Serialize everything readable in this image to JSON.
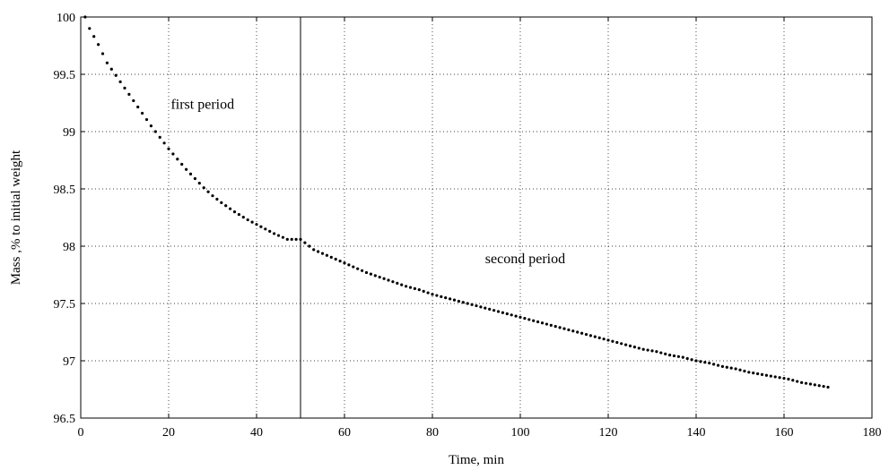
{
  "chart_data": {
    "type": "scatter",
    "xlabel": "Time, min",
    "ylabel": "Mass ,% to initial weight",
    "xlim": [
      0,
      180
    ],
    "ylim": [
      96.5,
      100
    ],
    "xticks": [
      0,
      20,
      40,
      60,
      80,
      100,
      120,
      140,
      160,
      180
    ],
    "yticks": [
      96.5,
      97,
      97.5,
      98,
      98.5,
      99,
      99.5,
      100
    ],
    "xtick_labels": [
      "0",
      "20",
      "40",
      "60",
      "80",
      "100",
      "120",
      "140",
      "160",
      "180"
    ],
    "ytick_labels": [
      "96.5",
      "97",
      "97.5",
      "98",
      "98.5",
      "99",
      "99.5",
      "100"
    ],
    "grid": true,
    "grid_style": "dotted",
    "marker_color": "#000000",
    "vline_x": 50,
    "annotations": [
      {
        "text": "first period",
        "x": 20.5,
        "y": 99.2
      },
      {
        "text": "second period",
        "x": 92,
        "y": 97.85
      }
    ],
    "series": [
      {
        "x": [
          1,
          2,
          3,
          4,
          5,
          6,
          8,
          10,
          12,
          14,
          16,
          18,
          20,
          22,
          24,
          26,
          28,
          30,
          32,
          35,
          38,
          41,
          44,
          47,
          50,
          53,
          56,
          59,
          62,
          65,
          68,
          71,
          74,
          77,
          80,
          83,
          86,
          89,
          92,
          95,
          98,
          101,
          104,
          107,
          110,
          113,
          116,
          119,
          122,
          125,
          128,
          131,
          134,
          137,
          140,
          143,
          146,
          149,
          152,
          155,
          158,
          161,
          164,
          167,
          170
        ],
        "y": [
          100.0,
          99.9,
          99.83,
          99.76,
          99.68,
          99.6,
          99.49,
          99.38,
          99.27,
          99.16,
          99.05,
          98.95,
          98.85,
          98.76,
          98.67,
          98.59,
          98.51,
          98.44,
          98.38,
          98.3,
          98.23,
          98.17,
          98.11,
          98.06,
          98.06,
          97.97,
          97.92,
          97.87,
          97.82,
          97.77,
          97.73,
          97.69,
          97.65,
          97.62,
          97.58,
          97.55,
          97.52,
          97.49,
          97.46,
          97.43,
          97.4,
          97.37,
          97.34,
          97.31,
          97.28,
          97.25,
          97.22,
          97.19,
          97.16,
          97.13,
          97.1,
          97.08,
          97.05,
          97.03,
          97.0,
          96.98,
          96.95,
          96.93,
          96.9,
          96.88,
          96.86,
          96.84,
          96.81,
          96.79,
          96.77
        ]
      }
    ]
  }
}
